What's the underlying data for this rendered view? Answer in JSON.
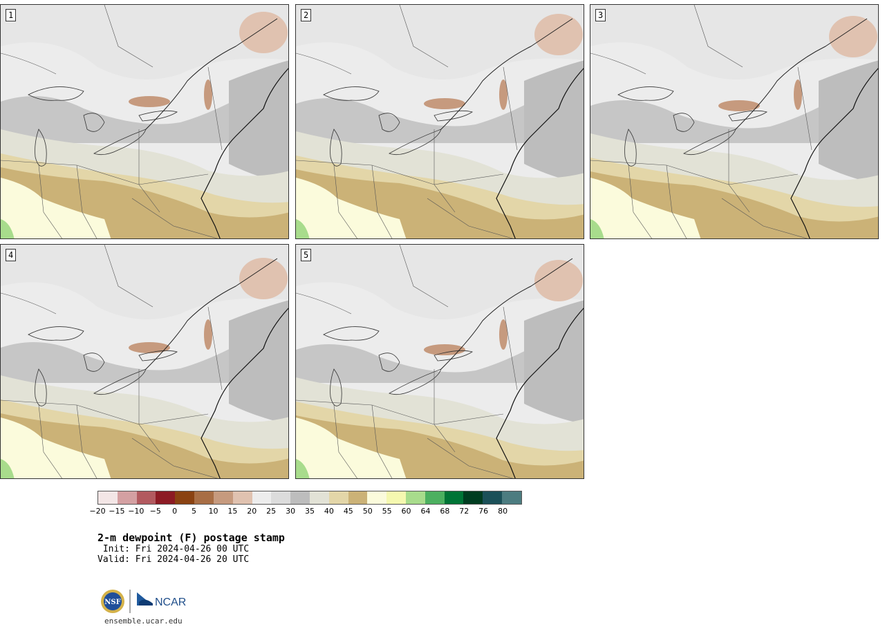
{
  "panels": [
    {
      "label": "1"
    },
    {
      "label": "2"
    },
    {
      "label": "3"
    },
    {
      "label": "4"
    },
    {
      "label": "5"
    }
  ],
  "colorbar": {
    "colors": [
      "#f3e6e6",
      "#d4a0a2",
      "#b25a5f",
      "#8c1b24",
      "#8a4212",
      "#a86e45",
      "#c69a7e",
      "#e0c2b0",
      "#ededed",
      "#dcdcdc",
      "#bdbdbd",
      "#e2e2d6",
      "#e3d6a8",
      "#cbb277",
      "#fbfbdc",
      "#f5f8b0",
      "#a8dc8c",
      "#4cb060",
      "#007436",
      "#003c20",
      "#1b5058",
      "#4c7c80"
    ],
    "ticks": [
      "−20",
      "−15",
      "−10",
      "−5",
      "0",
      "5",
      "10",
      "15",
      "20",
      "25",
      "30",
      "35",
      "40",
      "45",
      "50",
      "55",
      "60",
      "64",
      "68",
      "72",
      "76",
      "80"
    ]
  },
  "title": "2-m dewpoint (F) postage stamp",
  "init_line": " Init: Fri 2024-04-26 00 UTC",
  "valid_line": "Valid: Fri 2024-04-26 20 UTC",
  "logo": {
    "nsf_text": "NSF",
    "ncar_text": "NCAR"
  },
  "url": "ensemble.ucar.edu"
}
